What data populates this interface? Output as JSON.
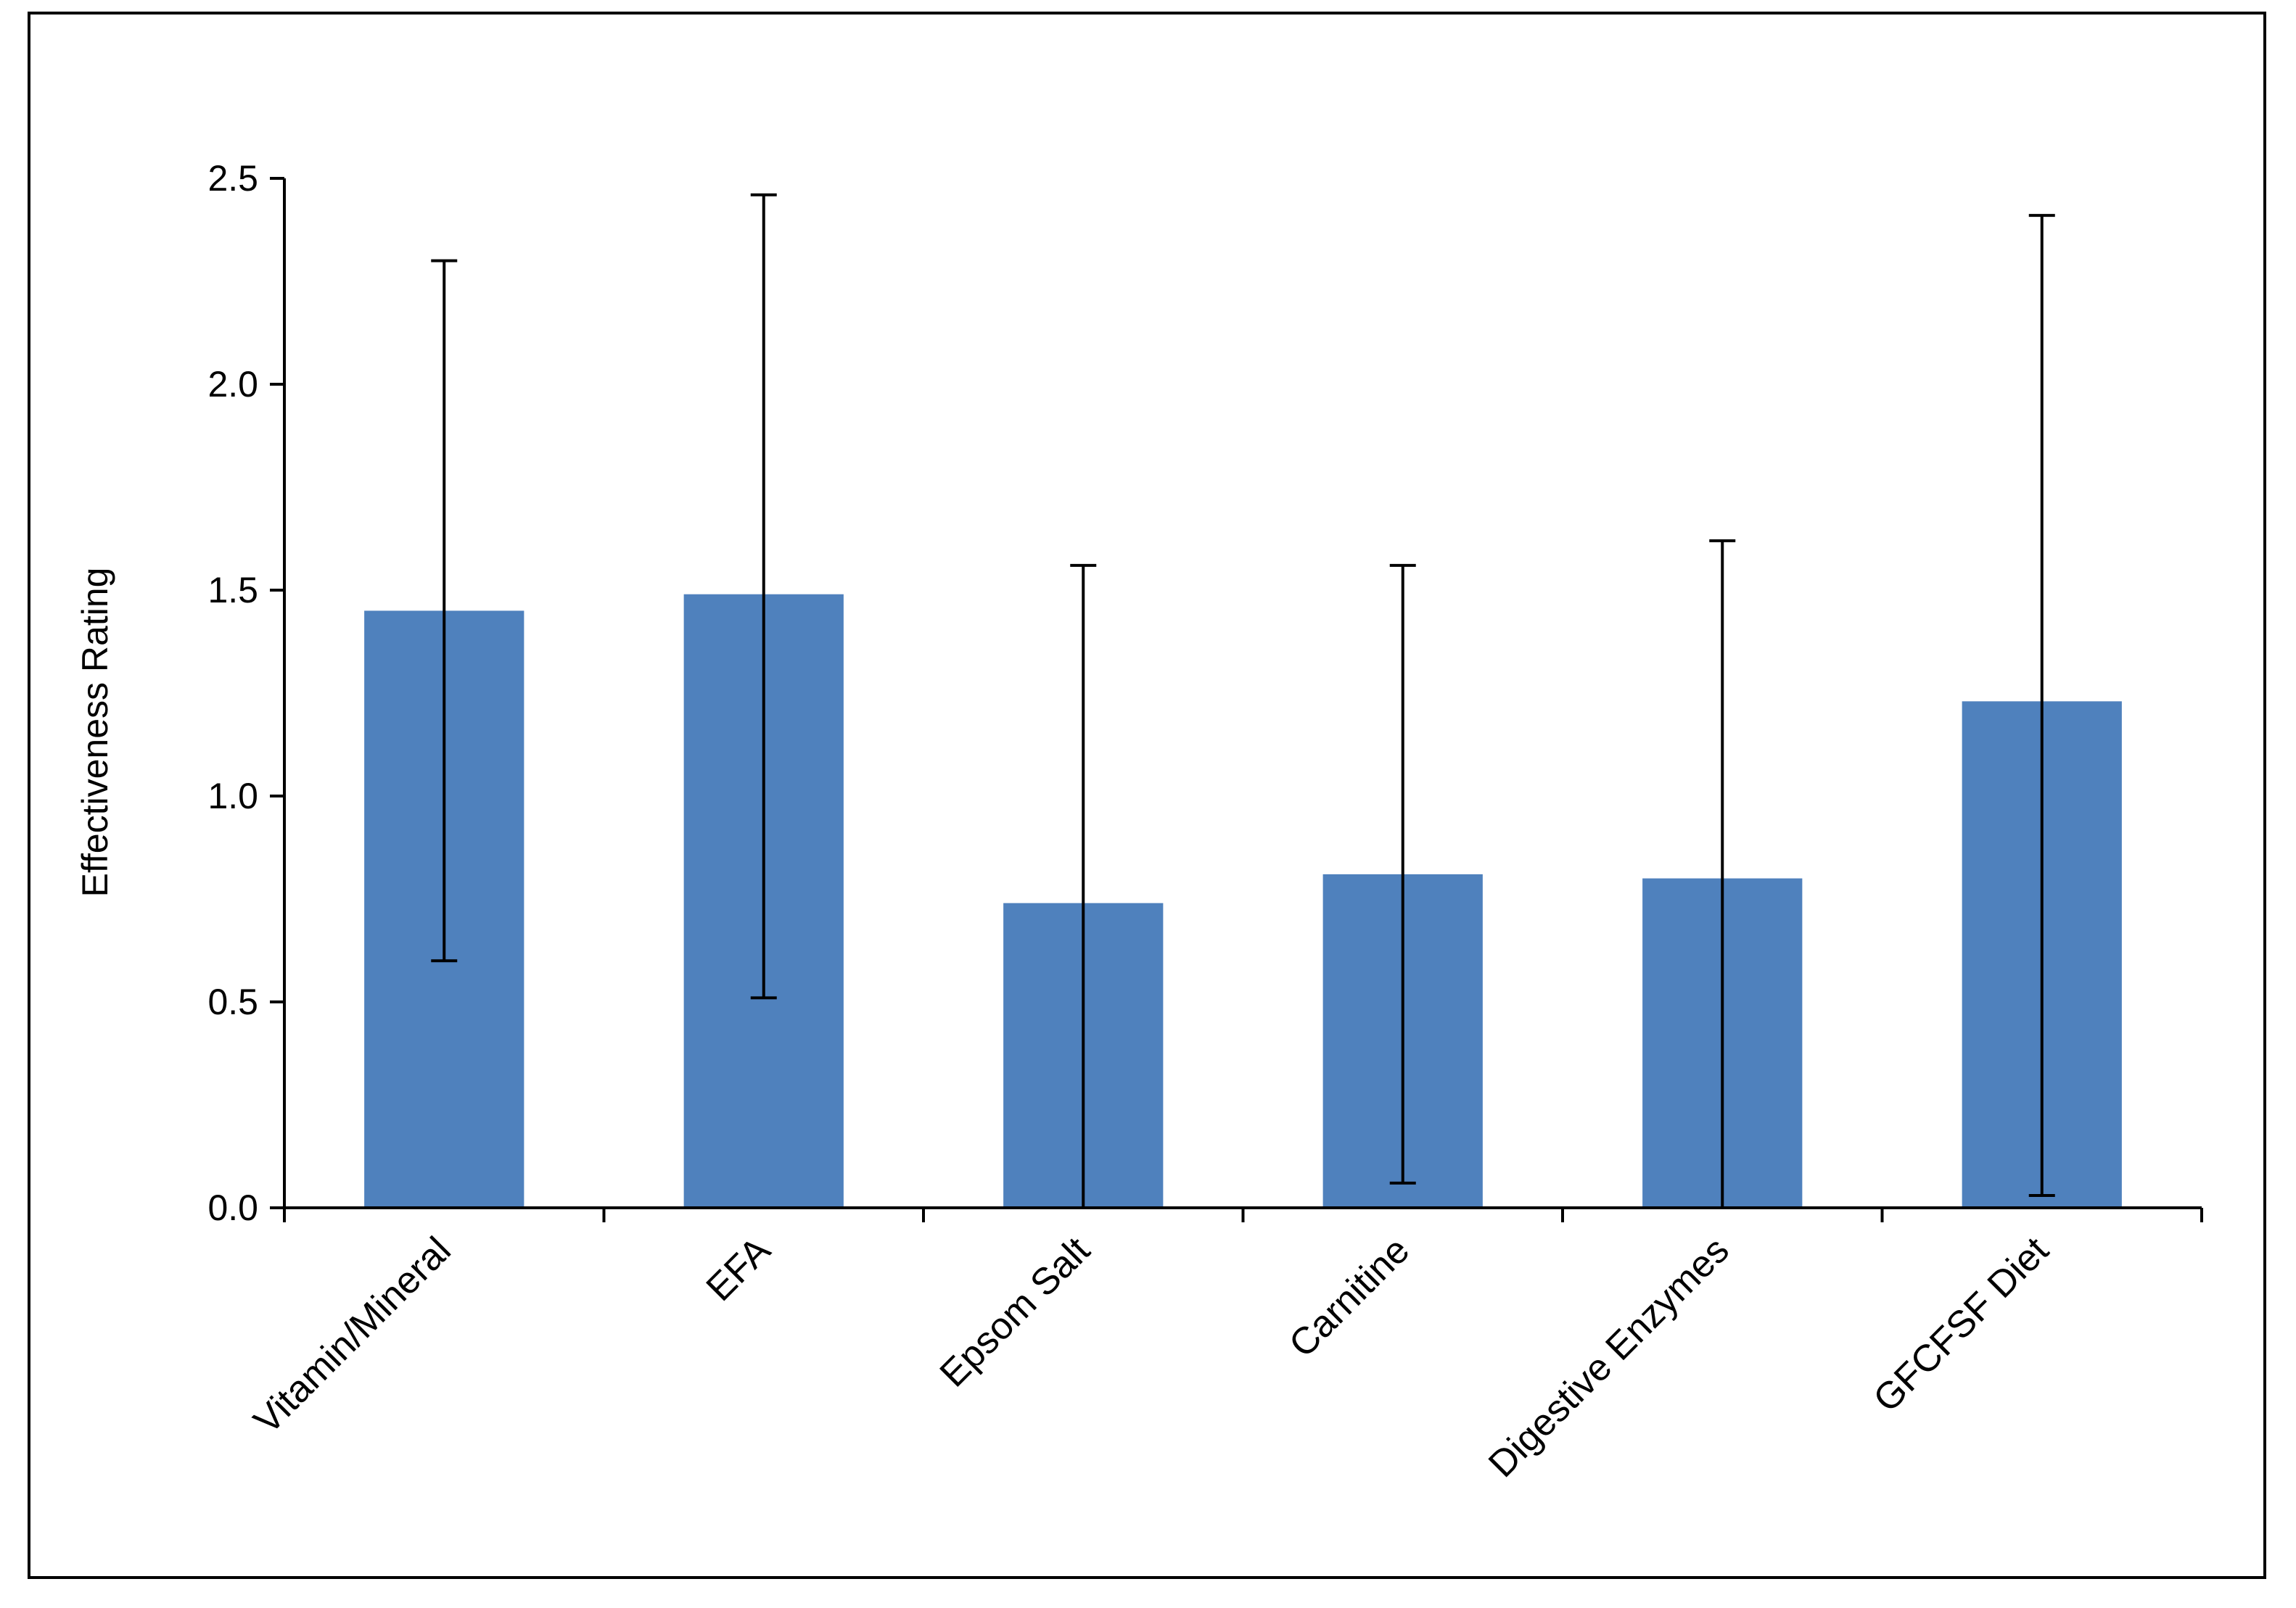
{
  "chart_data": {
    "type": "bar",
    "title": "",
    "xlabel": "",
    "ylabel": "Effectiveness Rating",
    "categories": [
      "Vitamin/Mineral",
      "EFA",
      "Epsom Salt",
      "Carnitine",
      "Digestive Enzymes",
      "GFCFSF Diet"
    ],
    "values": [
      1.45,
      1.49,
      0.74,
      0.81,
      0.8,
      1.23
    ],
    "error_bars": {
      "upper": [
        2.3,
        2.46,
        1.56,
        1.56,
        1.62,
        2.41
      ],
      "lower": [
        0.6,
        0.51,
        0.0,
        0.06,
        0.0,
        0.03
      ]
    },
    "ylim": [
      0,
      2.5
    ],
    "yticks": [
      "0.0",
      "0.5",
      "1.0",
      "1.5",
      "2.0",
      "2.5"
    ],
    "grid": false,
    "legend": "none",
    "bar_color": "#4F81BD",
    "error_bar_color": "#000000"
  }
}
